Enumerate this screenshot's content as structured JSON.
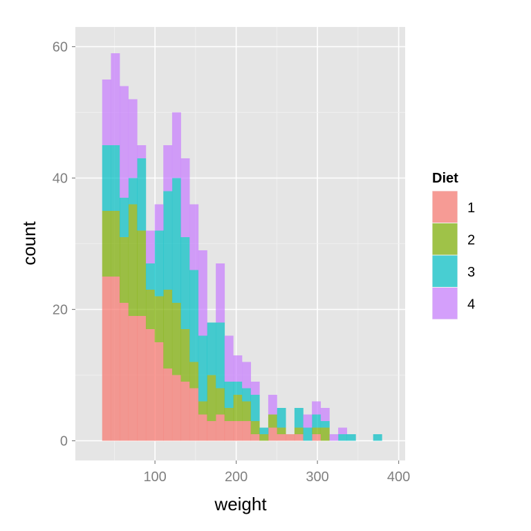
{
  "chart_data": {
    "type": "bar",
    "subtype": "stacked-histogram",
    "xlabel": "weight",
    "ylabel": "count",
    "xlim": [
      2,
      408
    ],
    "ylim": [
      -3,
      63
    ],
    "x_ticks": [
      100,
      200,
      300,
      400
    ],
    "y_ticks": [
      0,
      20,
      40,
      60
    ],
    "legend_title": "Diet",
    "legend_position": "right",
    "bin_width": 10.76,
    "bin_starts": [
      35.0,
      45.8,
      56.5,
      67.3,
      78.0,
      88.8,
      99.6,
      110.3,
      121.1,
      131.8,
      142.6,
      153.4,
      164.1,
      174.9,
      185.6,
      196.4,
      207.2,
      217.9,
      228.7,
      239.4,
      250.2,
      261.0,
      271.7,
      282.5,
      293.2,
      304.0,
      314.8,
      325.5,
      336.3,
      347.0,
      357.8,
      368.6
    ],
    "series": [
      {
        "name": "1",
        "color": "#F8766D",
        "values": [
          25,
          25,
          21,
          19,
          19,
          17,
          15,
          11,
          10,
          9,
          8,
          4,
          3,
          4,
          3,
          3,
          3,
          1,
          0,
          2,
          1,
          1,
          1,
          0,
          1,
          0,
          0,
          0,
          0,
          0,
          0,
          0
        ]
      },
      {
        "name": "2",
        "color": "#7CAE00",
        "values": [
          10,
          10,
          10,
          17,
          13,
          6,
          7,
          12,
          11,
          8,
          4,
          2,
          7,
          4,
          2,
          4,
          3,
          2,
          1,
          2,
          1,
          0,
          1,
          0,
          1,
          2,
          0,
          0,
          0,
          0,
          0,
          0
        ]
      },
      {
        "name": "3",
        "color": "#00BFC4",
        "values": [
          10,
          10,
          6,
          4,
          11,
          4,
          10,
          15,
          19,
          14,
          14,
          10,
          8,
          10,
          4,
          2,
          2,
          4,
          1,
          0,
          3,
          0,
          3,
          2,
          2,
          1,
          0,
          1,
          1,
          0,
          0,
          1
        ]
      },
      {
        "name": "4",
        "color": "#C77CFF",
        "values": [
          10,
          14,
          17,
          12,
          2,
          5,
          4,
          7,
          10,
          12,
          10,
          13,
          0,
          9,
          7,
          4,
          4,
          2,
          0,
          3,
          0,
          0,
          0,
          2,
          2,
          2,
          1,
          1,
          0,
          0,
          0,
          0
        ]
      }
    ]
  }
}
